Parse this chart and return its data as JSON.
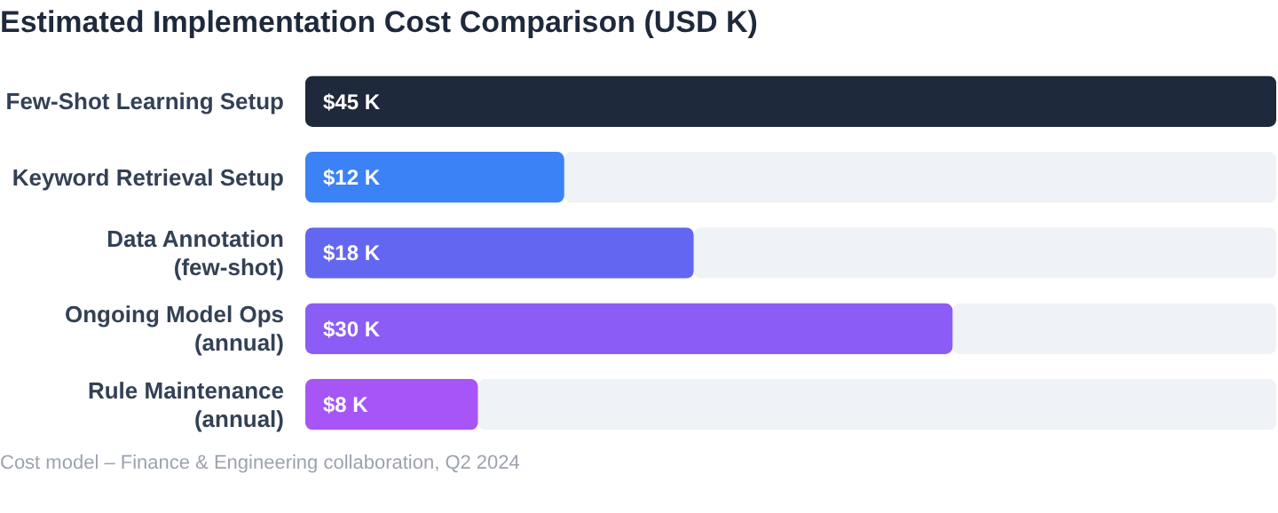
{
  "chart_data": {
    "type": "bar",
    "orientation": "horizontal",
    "title": "Estimated Implementation Cost Comparison (USD K)",
    "categories": [
      "Few-Shot Learning Setup",
      "Keyword Retrieval Setup",
      "Data Annotation (few-shot)",
      "Ongoing Model Ops (annual)",
      "Rule Maintenance (annual)"
    ],
    "values": [
      45,
      12,
      18,
      30,
      8
    ],
    "value_labels": [
      "$45 K",
      "$12 K",
      "$18 K",
      "$30 K",
      "$8 K"
    ],
    "colors": [
      "#1e293b",
      "#3b82f6",
      "#6366f1",
      "#8b5cf6",
      "#a855f7"
    ],
    "annotations": [
      "Cost model – Finance & Engineering collaboration, Q2 2024"
    ]
  }
}
